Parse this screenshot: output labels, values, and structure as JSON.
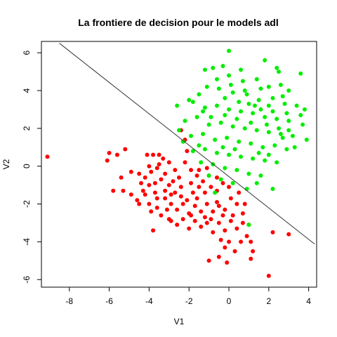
{
  "chart_data": {
    "type": "scatter",
    "title": "La frontiere de decision pour le models adl",
    "xlabel": "V1",
    "ylabel": "V2",
    "xlim": [
      -9.4,
      4.4
    ],
    "ylim": [
      -6.4,
      6.6
    ],
    "x_ticks": [
      -8,
      -6,
      -4,
      -2,
      0,
      2,
      4
    ],
    "y_ticks": [
      -6,
      -4,
      -2,
      0,
      2,
      4,
      6
    ],
    "x_tick_labels": [
      "-8",
      "-6",
      "-4",
      "-2",
      "0",
      "2",
      "4"
    ],
    "y_tick_labels": [
      "-6",
      "-4",
      "-2",
      "0",
      "2",
      "4",
      "6"
    ],
    "colors": {
      "class_red": "#ff0000",
      "class_green": "#00ee00",
      "boundary": "#333333"
    },
    "series": [
      {
        "color": "#ff0000",
        "points": [
          [
            -9.1,
            0.5
          ],
          [
            -6.1,
            0.3
          ],
          [
            -6.0,
            0.7
          ],
          [
            -5.6,
            0.6
          ],
          [
            -5.2,
            0.9
          ],
          [
            -5.8,
            -1.3
          ],
          [
            -5.3,
            -1.3
          ],
          [
            -5.4,
            -0.6
          ],
          [
            -4.9,
            -1.5
          ],
          [
            -4.9,
            -0.3
          ],
          [
            -4.5,
            -0.4
          ],
          [
            -4.4,
            -0.9
          ],
          [
            -4.3,
            -1.3
          ],
          [
            -4.1,
            0.6
          ],
          [
            -3.8,
            0.6
          ],
          [
            -3.5,
            0.6
          ],
          [
            -4.0,
            0.0
          ],
          [
            -3.9,
            -0.3
          ],
          [
            -3.6,
            -0.1
          ],
          [
            -3.3,
            0.4
          ],
          [
            -3.2,
            -0.4
          ],
          [
            -3.4,
            -0.7
          ],
          [
            -3.7,
            -0.9
          ],
          [
            -4.0,
            -1.0
          ],
          [
            -4.2,
            -1.5
          ],
          [
            -4.0,
            -2.0
          ],
          [
            -3.6,
            -1.7
          ],
          [
            -3.2,
            -1.3
          ],
          [
            -3.0,
            -1.0
          ],
          [
            -2.8,
            -0.8
          ],
          [
            -2.5,
            -0.6
          ],
          [
            -2.4,
            1.9
          ],
          [
            -2.2,
            1.4
          ],
          [
            -2.1,
            0.8
          ],
          [
            -2.2,
            0.2
          ],
          [
            -1.9,
            -0.2
          ],
          [
            -1.6,
            -0.5
          ],
          [
            -1.3,
            -0.8
          ],
          [
            -2.7,
            -1.4
          ],
          [
            -2.4,
            -1.6
          ],
          [
            -2.1,
            -1.8
          ],
          [
            -1.8,
            -1.4
          ],
          [
            -1.5,
            -1.1
          ],
          [
            -1.2,
            -1.4
          ],
          [
            -0.9,
            -1.1
          ],
          [
            -0.6,
            -1.3
          ],
          [
            -0.3,
            -0.9
          ],
          [
            -2.9,
            -2.0
          ],
          [
            -2.6,
            -2.3
          ],
          [
            -2.3,
            -2.0
          ],
          [
            -2.0,
            -2.5
          ],
          [
            -1.7,
            -2.1
          ],
          [
            -1.4,
            -2.4
          ],
          [
            -1.1,
            -2.0
          ],
          [
            -0.8,
            -2.4
          ],
          [
            -0.5,
            -2.1
          ],
          [
            -0.2,
            -2.3
          ],
          [
            0.1,
            -1.7
          ],
          [
            0.4,
            -2.0
          ],
          [
            0.7,
            -2.5
          ],
          [
            -3.9,
            -2.4
          ],
          [
            -3.6,
            -2.2
          ],
          [
            -3.4,
            -2.6
          ],
          [
            -3.1,
            -2.3
          ],
          [
            -2.9,
            -2.9
          ],
          [
            -2.6,
            -3.1
          ],
          [
            -2.3,
            -2.8
          ],
          [
            -2.0,
            -3.3
          ],
          [
            -1.7,
            -2.9
          ],
          [
            -1.4,
            -3.2
          ],
          [
            -1.1,
            -3.0
          ],
          [
            -0.8,
            -3.5
          ],
          [
            -0.5,
            -3.0
          ],
          [
            -0.2,
            -3.4
          ],
          [
            0.1,
            -2.9
          ],
          [
            0.4,
            -3.3
          ],
          [
            0.7,
            -3.0
          ],
          [
            1.0,
            -3.1
          ],
          [
            -0.4,
            -3.9
          ],
          [
            -0.2,
            -4.3
          ],
          [
            0.0,
            -4.0
          ],
          [
            0.3,
            -4.5
          ],
          [
            0.6,
            -4.0
          ],
          [
            0.9,
            -3.7
          ],
          [
            1.1,
            -4.0
          ],
          [
            1.2,
            -4.5
          ],
          [
            1.1,
            -4.9
          ],
          [
            -1.0,
            -5.0
          ],
          [
            -0.5,
            -4.8
          ],
          [
            -0.1,
            -5.1
          ],
          [
            2.0,
            -5.8
          ],
          [
            2.2,
            -3.5
          ],
          [
            3.0,
            -3.6
          ],
          [
            -3.8,
            -3.4
          ],
          [
            -3.0,
            -2.8
          ],
          [
            -4.5,
            -2.0
          ],
          [
            -1.6,
            -1.7
          ],
          [
            -1.2,
            -2.7
          ],
          [
            -0.6,
            -1.9
          ],
          [
            0.2,
            -2.6
          ],
          [
            -3.2,
            -1.7
          ],
          [
            -2.9,
            -1.5
          ],
          [
            -2.4,
            -1.1
          ],
          [
            -1.9,
            -0.9
          ],
          [
            -1.0,
            -0.5
          ],
          [
            -0.6,
            -0.6
          ],
          [
            0.0,
            -1.1
          ],
          [
            0.5,
            -1.4
          ],
          [
            -3.5,
            0.1
          ],
          [
            -3.0,
            0.2
          ],
          [
            -2.7,
            -0.2
          ],
          [
            -1.5,
            -0.2
          ],
          [
            -1.1,
            -0.1
          ],
          [
            -4.6,
            -1.8
          ],
          [
            -4.2,
            -0.6
          ],
          [
            -3.7,
            -1.4
          ],
          [
            -1.9,
            -2.6
          ],
          [
            -0.9,
            -2.8
          ],
          [
            -0.3,
            -2.6
          ],
          [
            0.8,
            -2.0
          ]
        ]
      },
      {
        "color": "#00ee00",
        "points": [
          [
            0.0,
            6.1
          ],
          [
            1.8,
            5.6
          ],
          [
            2.4,
            5.2
          ],
          [
            2.5,
            5.0
          ],
          [
            3.6,
            4.9
          ],
          [
            -1.2,
            5.1
          ],
          [
            -0.8,
            5.2
          ],
          [
            -0.3,
            5.3
          ],
          [
            0.6,
            5.1
          ],
          [
            -0.6,
            4.6
          ],
          [
            0.0,
            4.8
          ],
          [
            0.7,
            4.5
          ],
          [
            1.4,
            4.6
          ],
          [
            2.0,
            4.2
          ],
          [
            2.6,
            4.3
          ],
          [
            3.0,
            4.0
          ],
          [
            -1.5,
            3.8
          ],
          [
            -1.1,
            4.2
          ],
          [
            -0.5,
            4.1
          ],
          [
            0.2,
            3.9
          ],
          [
            0.9,
            3.8
          ],
          [
            1.5,
            3.5
          ],
          [
            2.2,
            3.6
          ],
          [
            2.8,
            3.3
          ],
          [
            3.4,
            3.2
          ],
          [
            3.8,
            3.0
          ],
          [
            -1.8,
            3.4
          ],
          [
            -1.2,
            3.1
          ],
          [
            -0.6,
            3.2
          ],
          [
            0.0,
            3.0
          ],
          [
            0.6,
            2.9
          ],
          [
            1.2,
            2.8
          ],
          [
            1.8,
            2.6
          ],
          [
            2.4,
            2.5
          ],
          [
            3.0,
            2.4
          ],
          [
            3.6,
            2.7
          ],
          [
            -2.2,
            2.4
          ],
          [
            -1.6,
            2.6
          ],
          [
            -1.0,
            2.2
          ],
          [
            -0.4,
            2.3
          ],
          [
            0.2,
            2.1
          ],
          [
            0.8,
            2.0
          ],
          [
            1.4,
            1.9
          ],
          [
            2.0,
            1.8
          ],
          [
            2.6,
            1.7
          ],
          [
            3.2,
            1.6
          ],
          [
            3.9,
            1.4
          ],
          [
            -2.5,
            1.9
          ],
          [
            -1.9,
            1.6
          ],
          [
            -1.3,
            1.7
          ],
          [
            -0.7,
            1.4
          ],
          [
            -0.1,
            1.5
          ],
          [
            0.5,
            1.3
          ],
          [
            1.1,
            1.2
          ],
          [
            1.7,
            1.0
          ],
          [
            2.3,
            1.1
          ],
          [
            2.9,
            0.9
          ],
          [
            -1.8,
            0.8
          ],
          [
            -1.2,
            0.9
          ],
          [
            -0.6,
            0.7
          ],
          [
            0.0,
            0.6
          ],
          [
            0.6,
            0.5
          ],
          [
            1.2,
            0.4
          ],
          [
            1.8,
            0.3
          ],
          [
            2.4,
            0.2
          ],
          [
            -1.4,
            0.2
          ],
          [
            -0.8,
            0.1
          ],
          [
            -0.2,
            -0.1
          ],
          [
            0.4,
            -0.2
          ],
          [
            1.0,
            -0.4
          ],
          [
            1.6,
            -0.5
          ],
          [
            2.2,
            -1.2
          ],
          [
            -1.0,
            -0.5
          ],
          [
            -0.4,
            -0.7
          ],
          [
            0.2,
            -0.9
          ],
          [
            0.9,
            -1.2
          ],
          [
            1.4,
            -0.9
          ],
          [
            -0.7,
            -1.4
          ],
          [
            1.0,
            -3.1
          ],
          [
            -2.6,
            3.2
          ],
          [
            -2.0,
            3.5
          ],
          [
            -1.3,
            2.9
          ],
          [
            -0.2,
            2.7
          ],
          [
            1.0,
            3.3
          ],
          [
            1.6,
            3.0
          ],
          [
            2.2,
            2.9
          ],
          [
            2.9,
            2.8
          ],
          [
            3.7,
            2.2
          ],
          [
            -2.3,
            1.3
          ],
          [
            -1.5,
            1.1
          ],
          [
            -0.3,
            1.0
          ],
          [
            0.3,
            0.9
          ],
          [
            1.5,
            0.7
          ],
          [
            2.0,
            0.6
          ],
          [
            2.7,
            1.5
          ],
          [
            3.3,
            1.0
          ],
          [
            -0.9,
            2.6
          ],
          [
            0.4,
            2.5
          ],
          [
            1.1,
            2.3
          ],
          [
            1.9,
            2.2
          ],
          [
            2.5,
            2.0
          ],
          [
            3.0,
            1.9
          ],
          [
            0.1,
            4.3
          ],
          [
            0.8,
            4.0
          ],
          [
            1.6,
            4.1
          ],
          [
            -0.2,
            3.6
          ],
          [
            0.5,
            3.4
          ],
          [
            1.3,
            3.2
          ],
          [
            2.0,
            3.2
          ],
          [
            2.7,
            3.7
          ]
        ]
      }
    ],
    "decision_boundary": {
      "slope": -0.83,
      "intercept": -0.55,
      "x_from": -8.5,
      "x_to": 4.3
    }
  }
}
